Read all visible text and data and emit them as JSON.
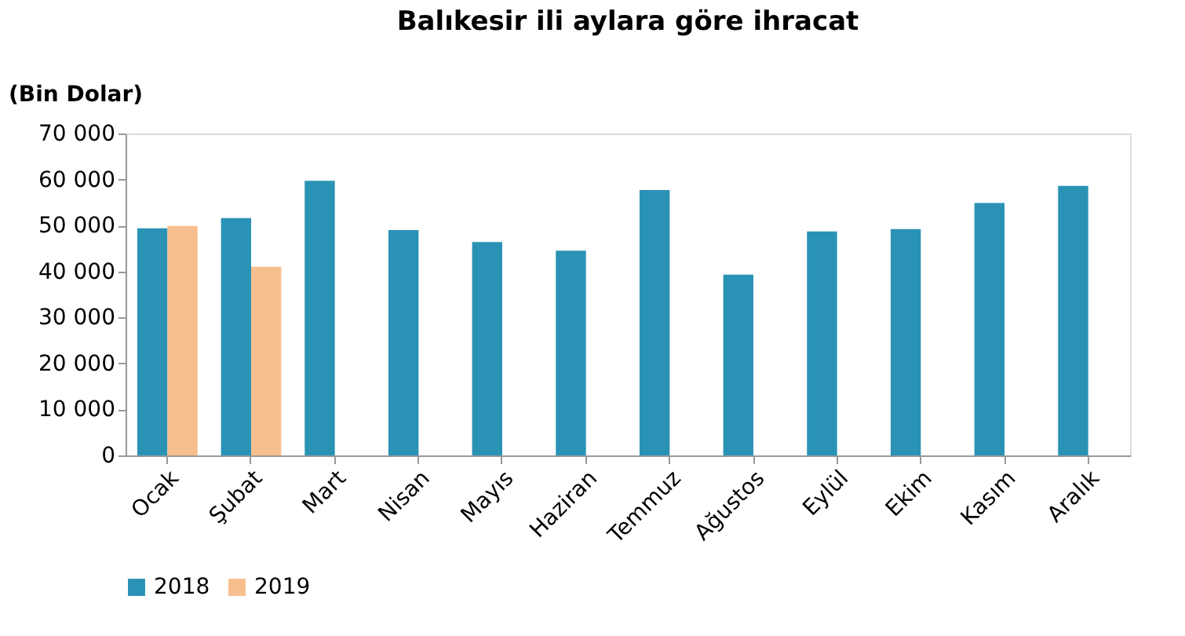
{
  "chart_data": {
    "type": "bar",
    "title": "Balıkesir ili aylara göre ihracat",
    "ylabel": "(Bin  Dolar)",
    "categories": [
      "Ocak",
      "Şubat",
      "Mart",
      "Nisan",
      "Mayıs",
      "Haziran",
      "Temmuz",
      "Ağustos",
      "Eylül",
      "Ekim",
      "Kasım",
      "Aralık"
    ],
    "series": [
      {
        "name": "2018",
        "color": "#2a93b5",
        "values": [
          49400,
          51600,
          59700,
          49000,
          46400,
          44500,
          57700,
          39300,
          48700,
          49200,
          54900,
          58600
        ]
      },
      {
        "name": "2019",
        "color": "#f8bf8e",
        "values": [
          49900,
          41000,
          null,
          null,
          null,
          null,
          null,
          null,
          null,
          null,
          null,
          null
        ]
      }
    ],
    "ylim": [
      0,
      70000
    ],
    "yticks": [
      0,
      {
        "value": 10000,
        "label": "10 000"
      },
      {
        "value": 20000,
        "label": "20 000"
      },
      {
        "value": 30000,
        "label": "30 000"
      },
      {
        "value": 40000,
        "label": "40 000"
      },
      {
        "value": 50000,
        "label": "50 000"
      },
      {
        "value": 60000,
        "label": "60 000"
      },
      {
        "value": 70000,
        "label": "70 000"
      }
    ],
    "grid": false,
    "legend": "bottom"
  }
}
